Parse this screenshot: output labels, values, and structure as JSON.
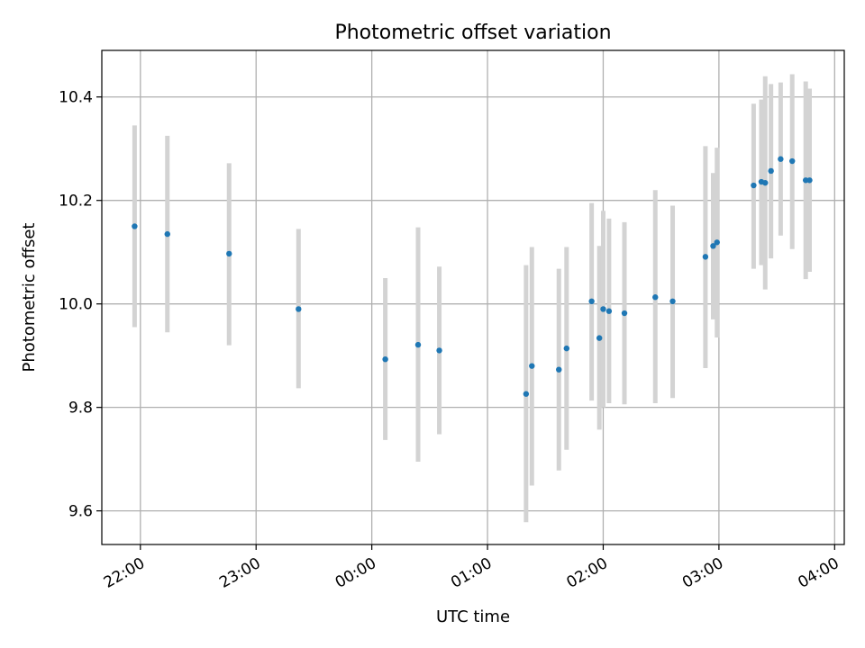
{
  "chart_data": {
    "type": "scatter",
    "title": "Photometric offset variation",
    "xlabel": "UTC time",
    "ylabel": "Photometric offset",
    "x_unit": "UTC HH:MM (spanning midnight)",
    "x_ticks": [
      "22:00",
      "23:00",
      "00:00",
      "01:00",
      "02:00",
      "03:00",
      "04:00"
    ],
    "y_ticks": [
      "9.6",
      "9.8",
      "10.0",
      "10.2",
      "10.4"
    ],
    "ylim": [
      9.535,
      10.49
    ],
    "xlim": [
      "21:40",
      "04:05"
    ],
    "grid": true,
    "marker_color": "#1f77b4",
    "errorbar_color": "#d3d3d3",
    "series": [
      {
        "points": [
          {
            "x": "21:57",
            "y": 10.15,
            "ylo": 9.955,
            "yhi": 10.345
          },
          {
            "x": "22:14",
            "y": 10.135,
            "ylo": 9.945,
            "yhi": 10.325
          },
          {
            "x": "22:46",
            "y": 10.097,
            "ylo": 9.92,
            "yhi": 10.272
          },
          {
            "x": "23:22",
            "y": 9.99,
            "ylo": 9.837,
            "yhi": 10.145
          },
          {
            "x": "00:07",
            "y": 9.893,
            "ylo": 9.737,
            "yhi": 10.05
          },
          {
            "x": "00:24",
            "y": 9.921,
            "ylo": 9.695,
            "yhi": 10.148
          },
          {
            "x": "00:35",
            "y": 9.91,
            "ylo": 9.748,
            "yhi": 10.072
          },
          {
            "x": "01:20",
            "y": 9.826,
            "ylo": 9.578,
            "yhi": 10.075
          },
          {
            "x": "01:23",
            "y": 9.88,
            "ylo": 9.649,
            "yhi": 10.11
          },
          {
            "x": "01:37",
            "y": 9.873,
            "ylo": 9.678,
            "yhi": 10.068
          },
          {
            "x": "01:41",
            "y": 9.914,
            "ylo": 9.718,
            "yhi": 10.11
          },
          {
            "x": "01:54",
            "y": 10.005,
            "ylo": 9.813,
            "yhi": 10.195
          },
          {
            "x": "01:58",
            "y": 9.934,
            "ylo": 9.757,
            "yhi": 10.112
          },
          {
            "x": "02:00",
            "y": 9.99,
            "ylo": 9.8,
            "yhi": 10.18
          },
          {
            "x": "02:03",
            "y": 9.986,
            "ylo": 9.808,
            "yhi": 10.165
          },
          {
            "x": "02:11",
            "y": 9.982,
            "ylo": 9.806,
            "yhi": 10.158
          },
          {
            "x": "02:27",
            "y": 10.013,
            "ylo": 9.808,
            "yhi": 10.22
          },
          {
            "x": "02:36",
            "y": 10.005,
            "ylo": 9.818,
            "yhi": 10.19
          },
          {
            "x": "02:53",
            "y": 10.091,
            "ylo": 9.876,
            "yhi": 10.305
          },
          {
            "x": "02:57",
            "y": 10.112,
            "ylo": 9.97,
            "yhi": 10.253
          },
          {
            "x": "02:59",
            "y": 10.119,
            "ylo": 9.935,
            "yhi": 10.302
          },
          {
            "x": "03:18",
            "y": 10.229,
            "ylo": 10.068,
            "yhi": 10.387
          },
          {
            "x": "03:22",
            "y": 10.236,
            "ylo": 10.075,
            "yhi": 10.395
          },
          {
            "x": "03:24",
            "y": 10.234,
            "ylo": 10.028,
            "yhi": 10.44
          },
          {
            "x": "03:27",
            "y": 10.257,
            "ylo": 10.088,
            "yhi": 10.425
          },
          {
            "x": "03:32",
            "y": 10.28,
            "ylo": 10.132,
            "yhi": 10.428
          },
          {
            "x": "03:38",
            "y": 10.276,
            "ylo": 10.106,
            "yhi": 10.444
          },
          {
            "x": "03:45",
            "y": 10.239,
            "ylo": 10.048,
            "yhi": 10.43
          },
          {
            "x": "03:47",
            "y": 10.239,
            "ylo": 10.062,
            "yhi": 10.416
          }
        ]
      }
    ]
  }
}
